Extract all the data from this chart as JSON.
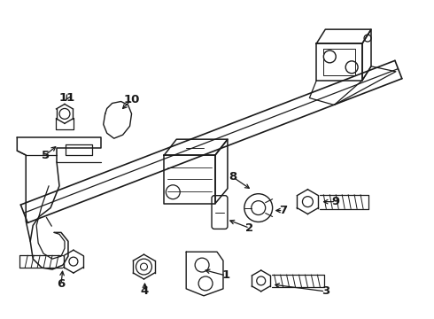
{
  "bg_color": "#ffffff",
  "line_color": "#1a1a1a",
  "line_width": 1.1,
  "fig_width": 4.9,
  "fig_height": 3.6,
  "dpi": 100
}
